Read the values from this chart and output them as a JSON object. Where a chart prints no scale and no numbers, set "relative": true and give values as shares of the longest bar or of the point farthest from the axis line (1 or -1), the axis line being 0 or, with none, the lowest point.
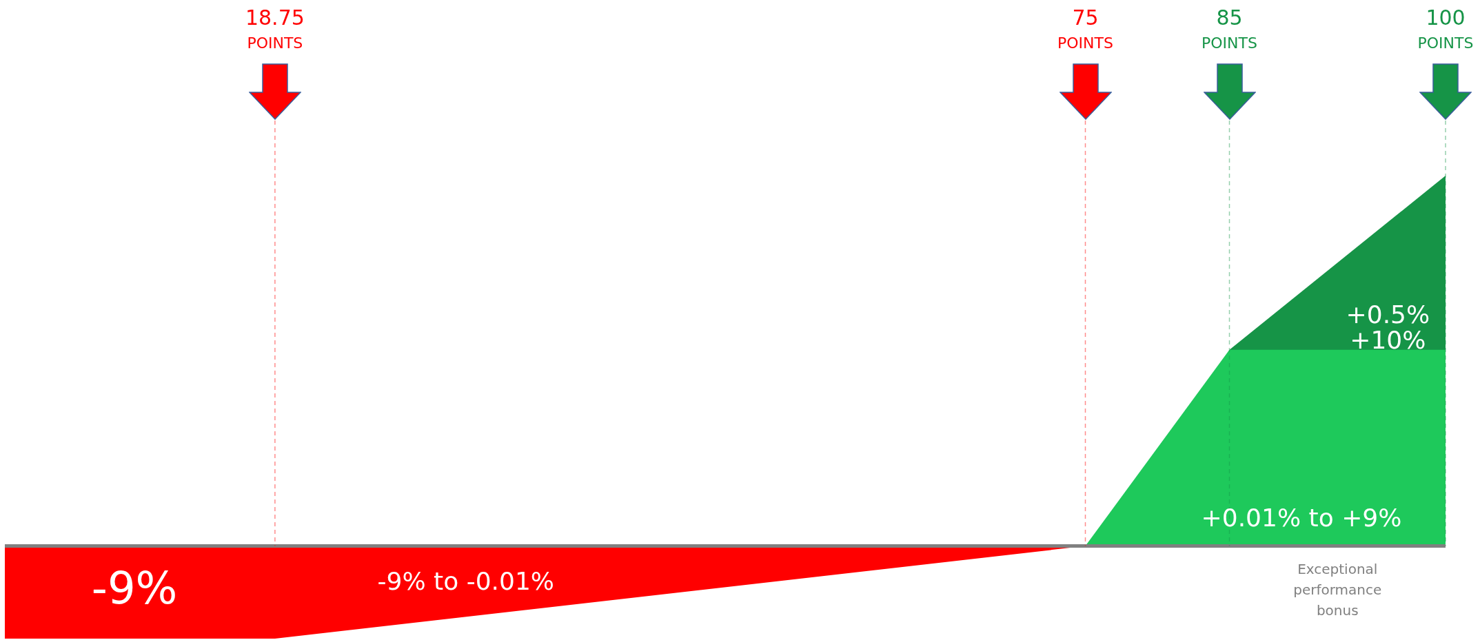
{
  "chart_data": {
    "type": "area",
    "relative": true,
    "xlim": [
      0,
      100
    ],
    "tick_labels": "x",
    "legend": false,
    "xticks": [
      {
        "value": 18.75,
        "label": "18.75 POINTS"
      },
      {
        "value": 75,
        "label": "75 POINTS"
      },
      {
        "value": 85,
        "label": "85 POINTS"
      },
      {
        "value": 100,
        "label": "100 POINTS"
      }
    ],
    "series": [
      {
        "color": "#ff0000",
        "x": [
          0,
          18.75,
          75
        ],
        "values": [
          -0.25,
          -0.25,
          0
        ]
      },
      {
        "color": "#169447",
        "x": [
          85,
          100
        ],
        "values": [
          0.53,
          1
        ]
      },
      {
        "color": "#1ec95b",
        "x": [
          75,
          85,
          100
        ],
        "values": [
          0,
          0.53,
          0.53
        ]
      }
    ],
    "ref_lines": [
      {
        "axis": "x",
        "value": 18.75,
        "color": "#ff0000",
        "line_style": "dashed"
      },
      {
        "axis": "x",
        "value": 75,
        "color": "#ff0000",
        "line_style": "dashed"
      },
      {
        "axis": "x",
        "value": 85,
        "color": "#169447",
        "line_style": "dashed"
      },
      {
        "axis": "x",
        "value": 100,
        "color": "#169447",
        "line_style": "dashed"
      }
    ],
    "annotations": [
      "-9%",
      "-9% to -0.01%",
      "+0.01% to +9%",
      "+0.5%",
      "+10%",
      "Exceptional performance bonus"
    ]
  }
}
